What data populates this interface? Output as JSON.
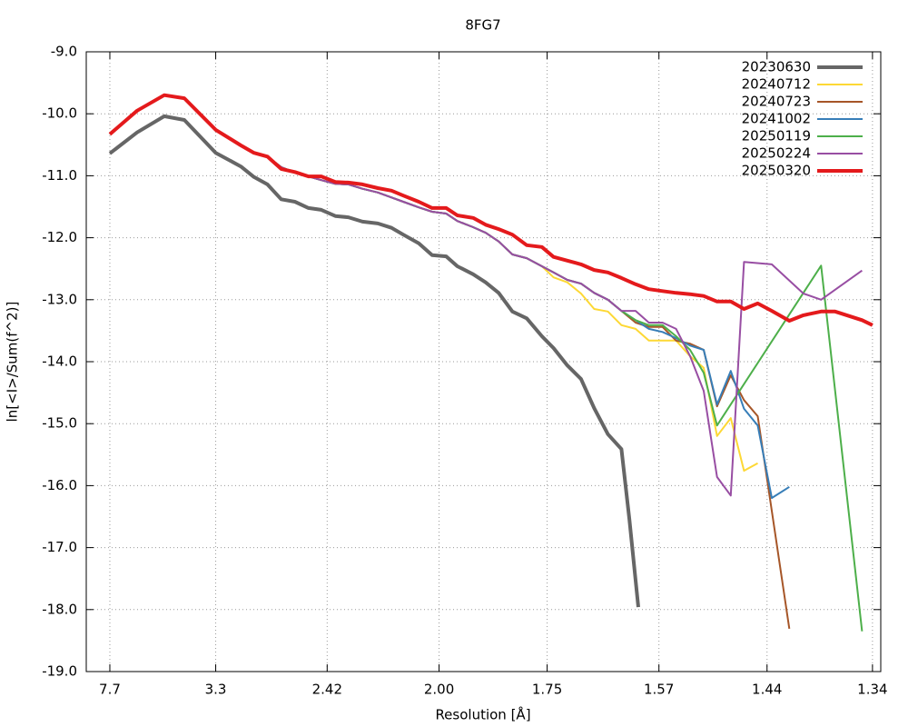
{
  "chart_data": {
    "type": "line",
    "title": "8FG7",
    "x_label": "Resolution [Å]",
    "y_label": "ln[<I>/Sum(f^2)]",
    "xscale": "inverse-square",
    "xlim": [
      78.8,
      1.333
    ],
    "ylim": [
      -19,
      -9
    ],
    "grid": true,
    "legend": "top-right",
    "xticks": [
      7.7,
      3.3,
      2.42,
      {
        "value": 2,
        "label": "2.00"
      },
      1.75,
      1.57,
      1.44,
      1.34
    ],
    "yticks": [
      {
        "value": -9,
        "label": "-9.0"
      },
      {
        "value": -10,
        "label": "-10.0"
      },
      {
        "value": -11,
        "label": "-11.0"
      },
      {
        "value": -12,
        "label": "-12.0"
      },
      {
        "value": -13,
        "label": "-13.0"
      },
      {
        "value": -14,
        "label": "-14.0"
      },
      {
        "value": -15,
        "label": "-15.0"
      },
      {
        "value": -16,
        "label": "-16.0"
      },
      {
        "value": -17,
        "label": "-17.0"
      },
      {
        "value": -18,
        "label": "-18.0"
      },
      {
        "value": -19,
        "label": "-19.0"
      }
    ],
    "series": [
      {
        "name": "20230630",
        "color": "#666666",
        "line_width": 4,
        "x": [
          7.7,
          5.26,
          4.25,
          3.79,
          3.3,
          3.02,
          2.9,
          2.79,
          2.69,
          2.6,
          2.52,
          2.45,
          2.38,
          2.32,
          2.26,
          2.2,
          2.15,
          2.11,
          2.06,
          2.02,
          1.98,
          1.95,
          1.91,
          1.88,
          1.85,
          1.82,
          1.79,
          1.76,
          1.738,
          1.713,
          1.689,
          1.667,
          1.645,
          1.624,
          1.612,
          1.599
        ],
        "values": [
          -10.64,
          -10.3,
          -10.04,
          -10.1,
          -10.63,
          -10.85,
          -11.02,
          -11.14,
          -11.38,
          -11.42,
          -11.52,
          -11.55,
          -11.65,
          -11.67,
          -11.74,
          -11.77,
          -11.84,
          -11.95,
          -12.09,
          -12.28,
          -12.3,
          -12.46,
          -12.59,
          -12.72,
          -12.89,
          -13.19,
          -13.3,
          -13.59,
          -13.78,
          -14.06,
          -14.28,
          -14.75,
          -15.17,
          -15.41,
          -16.55,
          -17.96
        ]
      },
      {
        "name": "20240712",
        "color": "#fdd835",
        "line_width": 2,
        "x": [
          7.7,
          5.26,
          4.25,
          3.79,
          3.3,
          3.02,
          2.9,
          2.79,
          2.69,
          2.6,
          2.52,
          2.45,
          2.38,
          2.32,
          2.26,
          2.2,
          2.15,
          2.11,
          2.06,
          2.02,
          1.98,
          1.95,
          1.91,
          1.88,
          1.85,
          1.82,
          1.79,
          1.76,
          1.738,
          1.713,
          1.689,
          1.667,
          1.645,
          1.624,
          1.603,
          1.584,
          1.565,
          1.547,
          1.529,
          1.512,
          1.496,
          1.48,
          1.465,
          1.45
        ],
        "values": [
          -10.33,
          -9.95,
          -9.7,
          -9.75,
          -10.26,
          -10.51,
          -10.63,
          -10.69,
          -10.86,
          -10.95,
          -11.01,
          -11.07,
          -11.13,
          -11.14,
          -11.21,
          -11.27,
          -11.35,
          -11.42,
          -11.51,
          -11.58,
          -11.61,
          -11.73,
          -11.83,
          -11.92,
          -12.06,
          -12.27,
          -12.33,
          -12.46,
          -12.64,
          -12.72,
          -12.9,
          -13.15,
          -13.19,
          -13.41,
          -13.47,
          -13.66,
          -13.66,
          -13.66,
          -13.91,
          -14.1,
          -15.2,
          -14.91,
          -15.76,
          -15.64
        ]
      },
      {
        "name": "20240723",
        "color": "#a65628",
        "line_width": 2,
        "x": [
          7.7,
          5.26,
          4.25,
          3.79,
          3.3,
          3.02,
          2.9,
          2.79,
          2.69,
          2.6,
          2.52,
          2.45,
          2.38,
          2.32,
          2.26,
          2.2,
          2.15,
          2.11,
          2.06,
          2.02,
          1.98,
          1.95,
          1.91,
          1.88,
          1.85,
          1.82,
          1.79,
          1.76,
          1.738,
          1.713,
          1.689,
          1.667,
          1.645,
          1.624,
          1.603,
          1.584,
          1.565,
          1.547,
          1.529,
          1.512,
          1.496,
          1.48,
          1.465,
          1.45,
          1.417
        ],
        "values": [
          -10.33,
          -9.95,
          -9.7,
          -9.75,
          -10.26,
          -10.51,
          -10.63,
          -10.69,
          -10.86,
          -10.95,
          -11.01,
          -11.07,
          -11.13,
          -11.14,
          -11.21,
          -11.27,
          -11.35,
          -11.42,
          -11.51,
          -11.58,
          -11.61,
          -11.73,
          -11.83,
          -11.92,
          -12.06,
          -12.27,
          -12.33,
          -12.46,
          -12.56,
          -12.68,
          -12.74,
          -12.89,
          -13.0,
          -13.18,
          -13.37,
          -13.44,
          -13.44,
          -13.66,
          -13.71,
          -13.81,
          -14.72,
          -14.22,
          -14.62,
          -14.88,
          -18.31
        ]
      },
      {
        "name": "20241002",
        "color": "#377eb8",
        "line_width": 2,
        "x": [
          7.7,
          5.26,
          4.25,
          3.79,
          3.3,
          3.02,
          2.9,
          2.79,
          2.69,
          2.6,
          2.52,
          2.45,
          2.38,
          2.32,
          2.26,
          2.2,
          2.15,
          2.11,
          2.06,
          2.02,
          1.98,
          1.95,
          1.91,
          1.88,
          1.85,
          1.82,
          1.79,
          1.76,
          1.738,
          1.713,
          1.689,
          1.667,
          1.645,
          1.624,
          1.603,
          1.584,
          1.565,
          1.547,
          1.529,
          1.512,
          1.496,
          1.48,
          1.465,
          1.45,
          1.435,
          1.417
        ],
        "values": [
          -10.33,
          -9.95,
          -9.7,
          -9.75,
          -10.26,
          -10.51,
          -10.63,
          -10.69,
          -10.86,
          -10.95,
          -11.01,
          -11.07,
          -11.13,
          -11.14,
          -11.21,
          -11.27,
          -11.35,
          -11.42,
          -11.51,
          -11.58,
          -11.61,
          -11.73,
          -11.83,
          -11.92,
          -12.06,
          -12.27,
          -12.33,
          -12.46,
          -12.56,
          -12.68,
          -12.74,
          -12.89,
          -13.0,
          -13.18,
          -13.33,
          -13.47,
          -13.52,
          -13.62,
          -13.74,
          -13.81,
          -14.69,
          -14.15,
          -14.76,
          -15.03,
          -16.2,
          -16.02
        ]
      },
      {
        "name": "20250119",
        "color": "#4daf4a",
        "line_width": 2,
        "x": [
          7.7,
          5.26,
          4.25,
          3.79,
          3.3,
          3.02,
          2.9,
          2.79,
          2.69,
          2.6,
          2.52,
          2.45,
          2.38,
          2.32,
          2.26,
          2.2,
          2.15,
          2.11,
          2.06,
          2.02,
          1.98,
          1.95,
          1.91,
          1.88,
          1.85,
          1.82,
          1.79,
          1.76,
          1.738,
          1.713,
          1.689,
          1.667,
          1.645,
          1.624,
          1.603,
          1.584,
          1.565,
          1.547,
          1.529,
          1.512,
          1.496,
          1.386,
          1.349
        ],
        "values": [
          -10.33,
          -9.95,
          -9.7,
          -9.75,
          -10.26,
          -10.51,
          -10.63,
          -10.69,
          -10.86,
          -10.95,
          -11.01,
          -11.07,
          -11.13,
          -11.14,
          -11.21,
          -11.27,
          -11.35,
          -11.42,
          -11.51,
          -11.58,
          -11.61,
          -11.73,
          -11.83,
          -11.92,
          -12.06,
          -12.27,
          -12.33,
          -12.46,
          -12.56,
          -12.68,
          -12.74,
          -12.89,
          -13.0,
          -13.18,
          -13.33,
          -13.41,
          -13.41,
          -13.59,
          -13.81,
          -14.18,
          -15.03,
          -12.45,
          -18.35
        ]
      },
      {
        "name": "20250224",
        "color": "#984ea3",
        "line_width": 2,
        "x": [
          7.7,
          5.26,
          4.25,
          3.79,
          3.3,
          3.02,
          2.9,
          2.79,
          2.69,
          2.6,
          2.52,
          2.45,
          2.38,
          2.32,
          2.26,
          2.2,
          2.15,
          2.11,
          2.06,
          2.02,
          1.98,
          1.95,
          1.91,
          1.88,
          1.85,
          1.82,
          1.79,
          1.76,
          1.738,
          1.713,
          1.689,
          1.667,
          1.645,
          1.624,
          1.603,
          1.584,
          1.565,
          1.547,
          1.529,
          1.512,
          1.496,
          1.48,
          1.465,
          1.435,
          1.403,
          1.386,
          1.349
        ],
        "values": [
          -10.33,
          -9.95,
          -9.7,
          -9.75,
          -10.26,
          -10.51,
          -10.63,
          -10.69,
          -10.86,
          -10.95,
          -11.01,
          -11.07,
          -11.13,
          -11.14,
          -11.21,
          -11.27,
          -11.35,
          -11.42,
          -11.51,
          -11.58,
          -11.61,
          -11.73,
          -11.83,
          -11.92,
          -12.06,
          -12.27,
          -12.33,
          -12.46,
          -12.56,
          -12.68,
          -12.74,
          -12.89,
          -13.0,
          -13.18,
          -13.18,
          -13.37,
          -13.37,
          -13.47,
          -13.91,
          -14.47,
          -15.86,
          -16.16,
          -12.39,
          -12.43,
          -12.9,
          -13.0,
          -12.53
        ]
      },
      {
        "name": "20250320",
        "color": "#e41a1c",
        "line_width": 4,
        "x": [
          7.7,
          5.26,
          4.25,
          3.79,
          3.3,
          3.02,
          2.9,
          2.79,
          2.69,
          2.6,
          2.52,
          2.45,
          2.38,
          2.32,
          2.26,
          2.2,
          2.15,
          2.11,
          2.06,
          2.02,
          1.98,
          1.95,
          1.91,
          1.88,
          1.85,
          1.82,
          1.79,
          1.76,
          1.738,
          1.713,
          1.689,
          1.667,
          1.645,
          1.624,
          1.603,
          1.584,
          1.565,
          1.547,
          1.529,
          1.512,
          1.496,
          1.48,
          1.465,
          1.45,
          1.435,
          1.417,
          1.403,
          1.386,
          1.373,
          1.349,
          1.34
        ],
        "values": [
          -10.33,
          -9.95,
          -9.7,
          -9.75,
          -10.26,
          -10.51,
          -10.63,
          -10.69,
          -10.89,
          -10.94,
          -11.01,
          -11.01,
          -11.1,
          -11.11,
          -11.14,
          -11.2,
          -11.24,
          -11.32,
          -11.42,
          -11.52,
          -11.52,
          -11.64,
          -11.68,
          -11.79,
          -11.86,
          -11.95,
          -12.12,
          -12.15,
          -12.31,
          -12.37,
          -12.43,
          -12.52,
          -12.56,
          -12.65,
          -12.75,
          -12.83,
          -12.86,
          -12.89,
          -12.91,
          -12.94,
          -13.03,
          -13.03,
          -13.15,
          -13.06,
          -13.18,
          -13.34,
          -13.25,
          -13.19,
          -13.19,
          -13.33,
          -13.41
        ]
      }
    ]
  }
}
